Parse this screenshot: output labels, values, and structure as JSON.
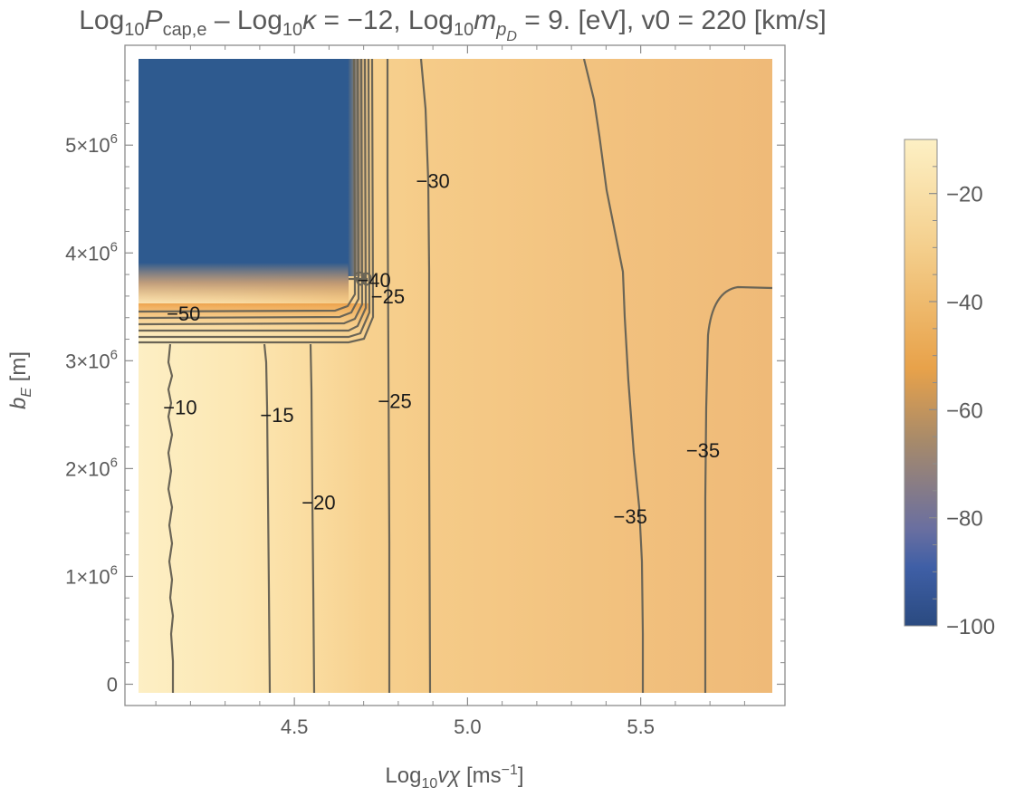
{
  "title": {
    "t1": "Log",
    "t1_sub": "10",
    "t2": "P",
    "t2_sub": "cap,e",
    "t3": " – Log",
    "t3_sub": "10",
    "t4": "κ",
    "t5": " = −12, Log",
    "t5_sub": "10",
    "t6": "m",
    "t6_sub": "p",
    "t6_subsub": "D",
    "t7": " = 9. [eV], v0 = 220 [km/s]"
  },
  "colors": {
    "low": "#2e5a8f",
    "mid": "#e8a24a",
    "high": "#fdf0c4",
    "contour": "#6b6556",
    "frame": "#8c8c8c"
  },
  "chart_data": {
    "type": "heatmap",
    "subtype": "contour_density",
    "xlabel": {
      "text": "Log",
      "sub": "10",
      "var": "vχ",
      "unit": " [ms",
      "sup": "−1",
      "close": "]"
    },
    "ylabel": {
      "text": "b",
      "sub": "E",
      "unit": " [m]"
    },
    "xlim": [
      4.05,
      5.88
    ],
    "ylim": [
      -80000,
      5800000
    ],
    "xticks": [
      {
        "value": 4.5,
        "label": "4.5"
      },
      {
        "value": 5.0,
        "label": "5.0"
      },
      {
        "value": 5.5,
        "label": "5.5"
      }
    ],
    "yticks": [
      {
        "value": 0,
        "label": "0",
        "exp": ""
      },
      {
        "value": 1000000,
        "label": "1×10",
        "exp": "6"
      },
      {
        "value": 2000000,
        "label": "2×10",
        "exp": "6"
      },
      {
        "value": 3000000,
        "label": "3×10",
        "exp": "6"
      },
      {
        "value": 4000000,
        "label": "4×10",
        "exp": "6"
      },
      {
        "value": 5000000,
        "label": "5×10",
        "exp": "6"
      }
    ],
    "colorbar": {
      "range": [
        -100,
        -10
      ],
      "ticks": [
        {
          "value": -20,
          "label": "−20"
        },
        {
          "value": -40,
          "label": "−40"
        },
        {
          "value": -60,
          "label": "−60"
        },
        {
          "value": -80,
          "label": "−80"
        },
        {
          "value": -100,
          "label": "−100"
        }
      ]
    },
    "masked_region": {
      "x": [
        4.09,
        4.67
      ],
      "y": [
        3800000,
        5700000
      ],
      "level": -100
    },
    "contour_labels": [
      {
        "text": "−10",
        "x": 4.17,
        "y": 2570000
      },
      {
        "text": "−15",
        "x": 4.45,
        "y": 2500000
      },
      {
        "text": "−20",
        "x": 4.57,
        "y": 1690000
      },
      {
        "text": "−25",
        "x": 4.79,
        "y": 2630000
      },
      {
        "text": "−25",
        "x": 4.77,
        "y": 3600000
      },
      {
        "text": "−30",
        "x": 4.9,
        "y": 4670000
      },
      {
        "text": "−35",
        "x": 5.47,
        "y": 1560000
      },
      {
        "text": "−35",
        "x": 5.68,
        "y": 2170000
      },
      {
        "text": "−50",
        "x": 4.18,
        "y": 3440000
      },
      {
        "text": "−40",
        "x": 4.73,
        "y": 3750000
      }
    ]
  }
}
